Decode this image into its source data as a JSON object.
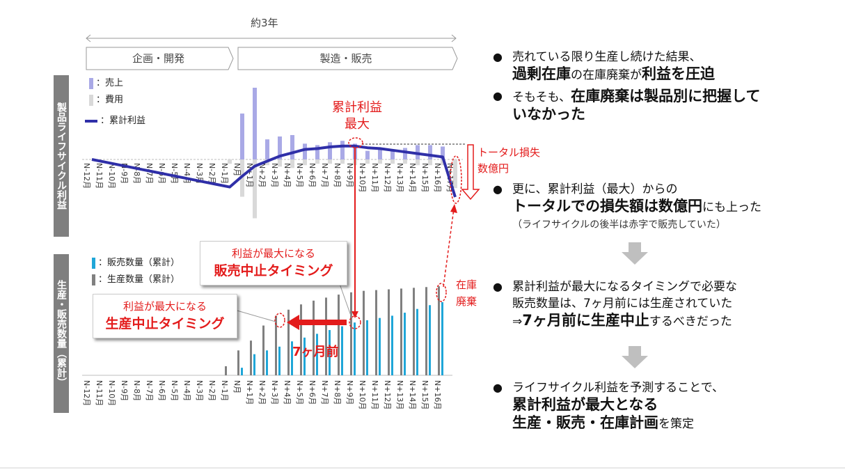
{
  "header": {
    "duration_label": "約3年"
  },
  "phases": {
    "planning": "企画・開発",
    "production": "製造・販売"
  },
  "side_labels": {
    "top": "製品ライフサイクル利益",
    "bottom": "生産・販売数量（累計）"
  },
  "legend_top": {
    "sales": "：売上",
    "cost": "：費用",
    "profit": "：累計利益"
  },
  "legend_bottom": {
    "sold": "：販売数量（累計）",
    "produced": "：生産数量（累計）"
  },
  "annotations": {
    "profit_max_1": "累計利益",
    "profit_max_2": "最大",
    "total_loss_1": "トータル損失",
    "total_loss_2": "数億円",
    "inventory_1": "在庫",
    "inventory_2": "廃棄",
    "months_before": "7ヶ月前"
  },
  "callouts": {
    "sales_stop": {
      "line1": "利益が最大になる",
      "line2": "販売中止タイミング"
    },
    "prod_stop": {
      "line1": "利益が最大になる",
      "line2": "生産中止タイミング"
    }
  },
  "bullets": {
    "b1_line1": "売れている限り生産し続けた結果、",
    "b1_line2_bold1": "過剰在庫",
    "b1_line2_mid": "の在庫廃棄が",
    "b1_line2_bold2": "利益を圧迫",
    "b2_pre": "そもそも、",
    "b2_bold": "在庫廃棄は製品別に把握して",
    "b2_bold2": "いなかった",
    "b3_line1": "更に、累計利益（最大）からの",
    "b3_bold1": "トータルでの損失額は数億円",
    "b3_tail": "にも上った",
    "b3_note": "（ライフサイクルの後半は赤字で販売していた）",
    "b4_line1": "累計利益が最大になるタイミングで必要な",
    "b4_line2": "販売数量は、7ヶ月前には生産されていた",
    "b4_pre": "⇒",
    "b4_bold": "7ヶ月前に生産中止",
    "b4_tail": "するべきだった",
    "b5_line1": "ライフサイクル利益を予測することで、",
    "b5_bold1": "累計利益が最大となる",
    "b5_bold2": "生産・販売・在庫計画",
    "b5_tail": "を策定"
  },
  "colors": {
    "sales": "#a9a9e6",
    "cost": "#d9d9d9",
    "profit": "#2f2fa8",
    "sold": "#1fa6d8",
    "produced": "#808080",
    "accent": "#e31b1b"
  },
  "chart_data": [
    {
      "type": "bar+line",
      "categories": [
        "N-12月",
        "N-11月",
        "N-10月",
        "N-9月",
        "N-8月",
        "N-7月",
        "N-6月",
        "N-5月",
        "N-4月",
        "N-3月",
        "N-2月",
        "N-1月",
        "N月",
        "N+1月",
        "N+2月",
        "N+3月",
        "N+4月",
        "N+5月",
        "N+6月",
        "N+7月",
        "N+8月",
        "N+9月",
        "N+10月",
        "N+11月",
        "N+12月",
        "N+13月",
        "N+14月",
        "N+15月",
        "N+16月",
        "N+17月"
      ],
      "series": [
        {
          "name": "売上",
          "values": [
            0,
            0,
            0,
            0,
            0,
            0,
            0,
            0,
            0,
            0,
            0,
            0,
            64,
            100,
            28,
            32,
            34,
            22,
            20,
            24,
            26,
            22,
            12,
            14,
            12,
            16,
            20,
            20,
            18,
            0
          ]
        },
        {
          "name": "費用",
          "values": [
            0,
            0,
            0,
            0,
            0,
            0,
            0,
            0,
            0,
            0,
            0,
            -6,
            -52,
            -82,
            -8,
            -10,
            -12,
            -8,
            -6,
            -6,
            -6,
            -8,
            -6,
            -6,
            -6,
            -6,
            -8,
            -8,
            -8,
            -40
          ]
        },
        {
          "name": "累計利益",
          "values": [
            0,
            -3,
            -6,
            -9,
            -12,
            -15,
            -18,
            -21,
            -24,
            -27,
            -30,
            -33,
            -20,
            -8,
            -2,
            4,
            8,
            12,
            13,
            15,
            16,
            16,
            14,
            13,
            11,
            9,
            7,
            5,
            3,
            -45
          ]
        }
      ],
      "ylim": [
        -60,
        105
      ]
    },
    {
      "type": "bar",
      "categories": [
        "N-12月",
        "N-11月",
        "N-10月",
        "N-9月",
        "N-8月",
        "N-7月",
        "N-6月",
        "N-5月",
        "N-4月",
        "N-3月",
        "N-2月",
        "N-1月",
        "N月",
        "N+1月",
        "N+2月",
        "N+3月",
        "N+4月",
        "N+5月",
        "N+6月",
        "N+7月",
        "N+8月",
        "N+9月",
        "N+10月",
        "N+11月",
        "N+12月",
        "N+13月",
        "N+14月",
        "N+15月",
        "N+16月"
      ],
      "series": [
        {
          "name": "販売数量（累計）",
          "values": [
            0,
            0,
            0,
            0,
            0,
            0,
            0,
            0,
            0,
            0,
            0,
            0,
            10,
            28,
            33,
            38,
            45,
            50,
            55,
            60,
            65,
            70,
            73,
            76,
            79,
            83,
            88,
            93,
            97
          ]
        },
        {
          "name": "生産数量（累計）",
          "values": [
            0,
            0,
            0,
            0,
            0,
            0,
            0,
            0,
            0,
            0,
            0,
            12,
            33,
            46,
            66,
            79,
            87,
            94,
            99,
            103,
            107,
            110,
            112,
            113,
            114,
            115,
            116,
            117,
            118
          ]
        }
      ],
      "ylim": [
        0,
        120
      ]
    }
  ]
}
